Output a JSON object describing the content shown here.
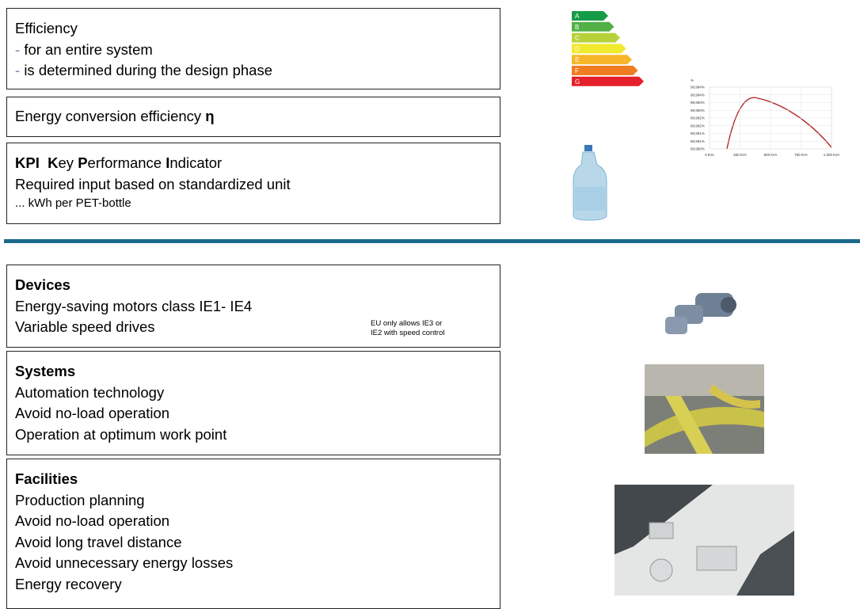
{
  "top": {
    "bullet": "-",
    "efficiency": {
      "title": "Efficiency",
      "items": [
        "for an entire system",
        "is determined during the design phase"
      ]
    },
    "conversion": {
      "title": "Energy conversion efficiency",
      "symbol": "η"
    },
    "kpi": {
      "title_parts": [
        "KPI",
        "K",
        "ey ",
        "P",
        "erformance ",
        "I",
        "ndicator"
      ],
      "line": "Required input based on standardized unit",
      "example": "... kWh per PET-bottle"
    }
  },
  "energy_label": {
    "classes": [
      "A",
      "B",
      "C",
      "D",
      "E",
      "F",
      "G"
    ]
  },
  "efficiency_chart": {
    "y_unit": "%",
    "y_labels": [
      "98,994%",
      "98,994%",
      "98,993%",
      "98,993%",
      "98,992%",
      "98,992%",
      "98,991%",
      "98,991%",
      "98,990%"
    ],
    "x_labels": [
      "0 kVA",
      "250 kVA",
      "500 kVA",
      "750 kVA",
      "1.000 kVA"
    ]
  },
  "bottom": {
    "devices": {
      "title": "Devices",
      "lines": [
        "Energy-saving motors class IE1- IE4",
        "Variable speed drives"
      ],
      "note": [
        "EU only allows IE3 or",
        "IE2 with speed control"
      ]
    },
    "systems": {
      "title": "Systems",
      "lines": [
        "Automation technology",
        "Avoid no-load operation",
        "Operation at optimum work point"
      ]
    },
    "facilities": {
      "title": "Facilities",
      "lines": [
        "Production planning",
        "Avoid no-load operation",
        "Avoid long travel distance",
        "Avoid unnecessary energy losses",
        "Energy recovery"
      ]
    }
  }
}
